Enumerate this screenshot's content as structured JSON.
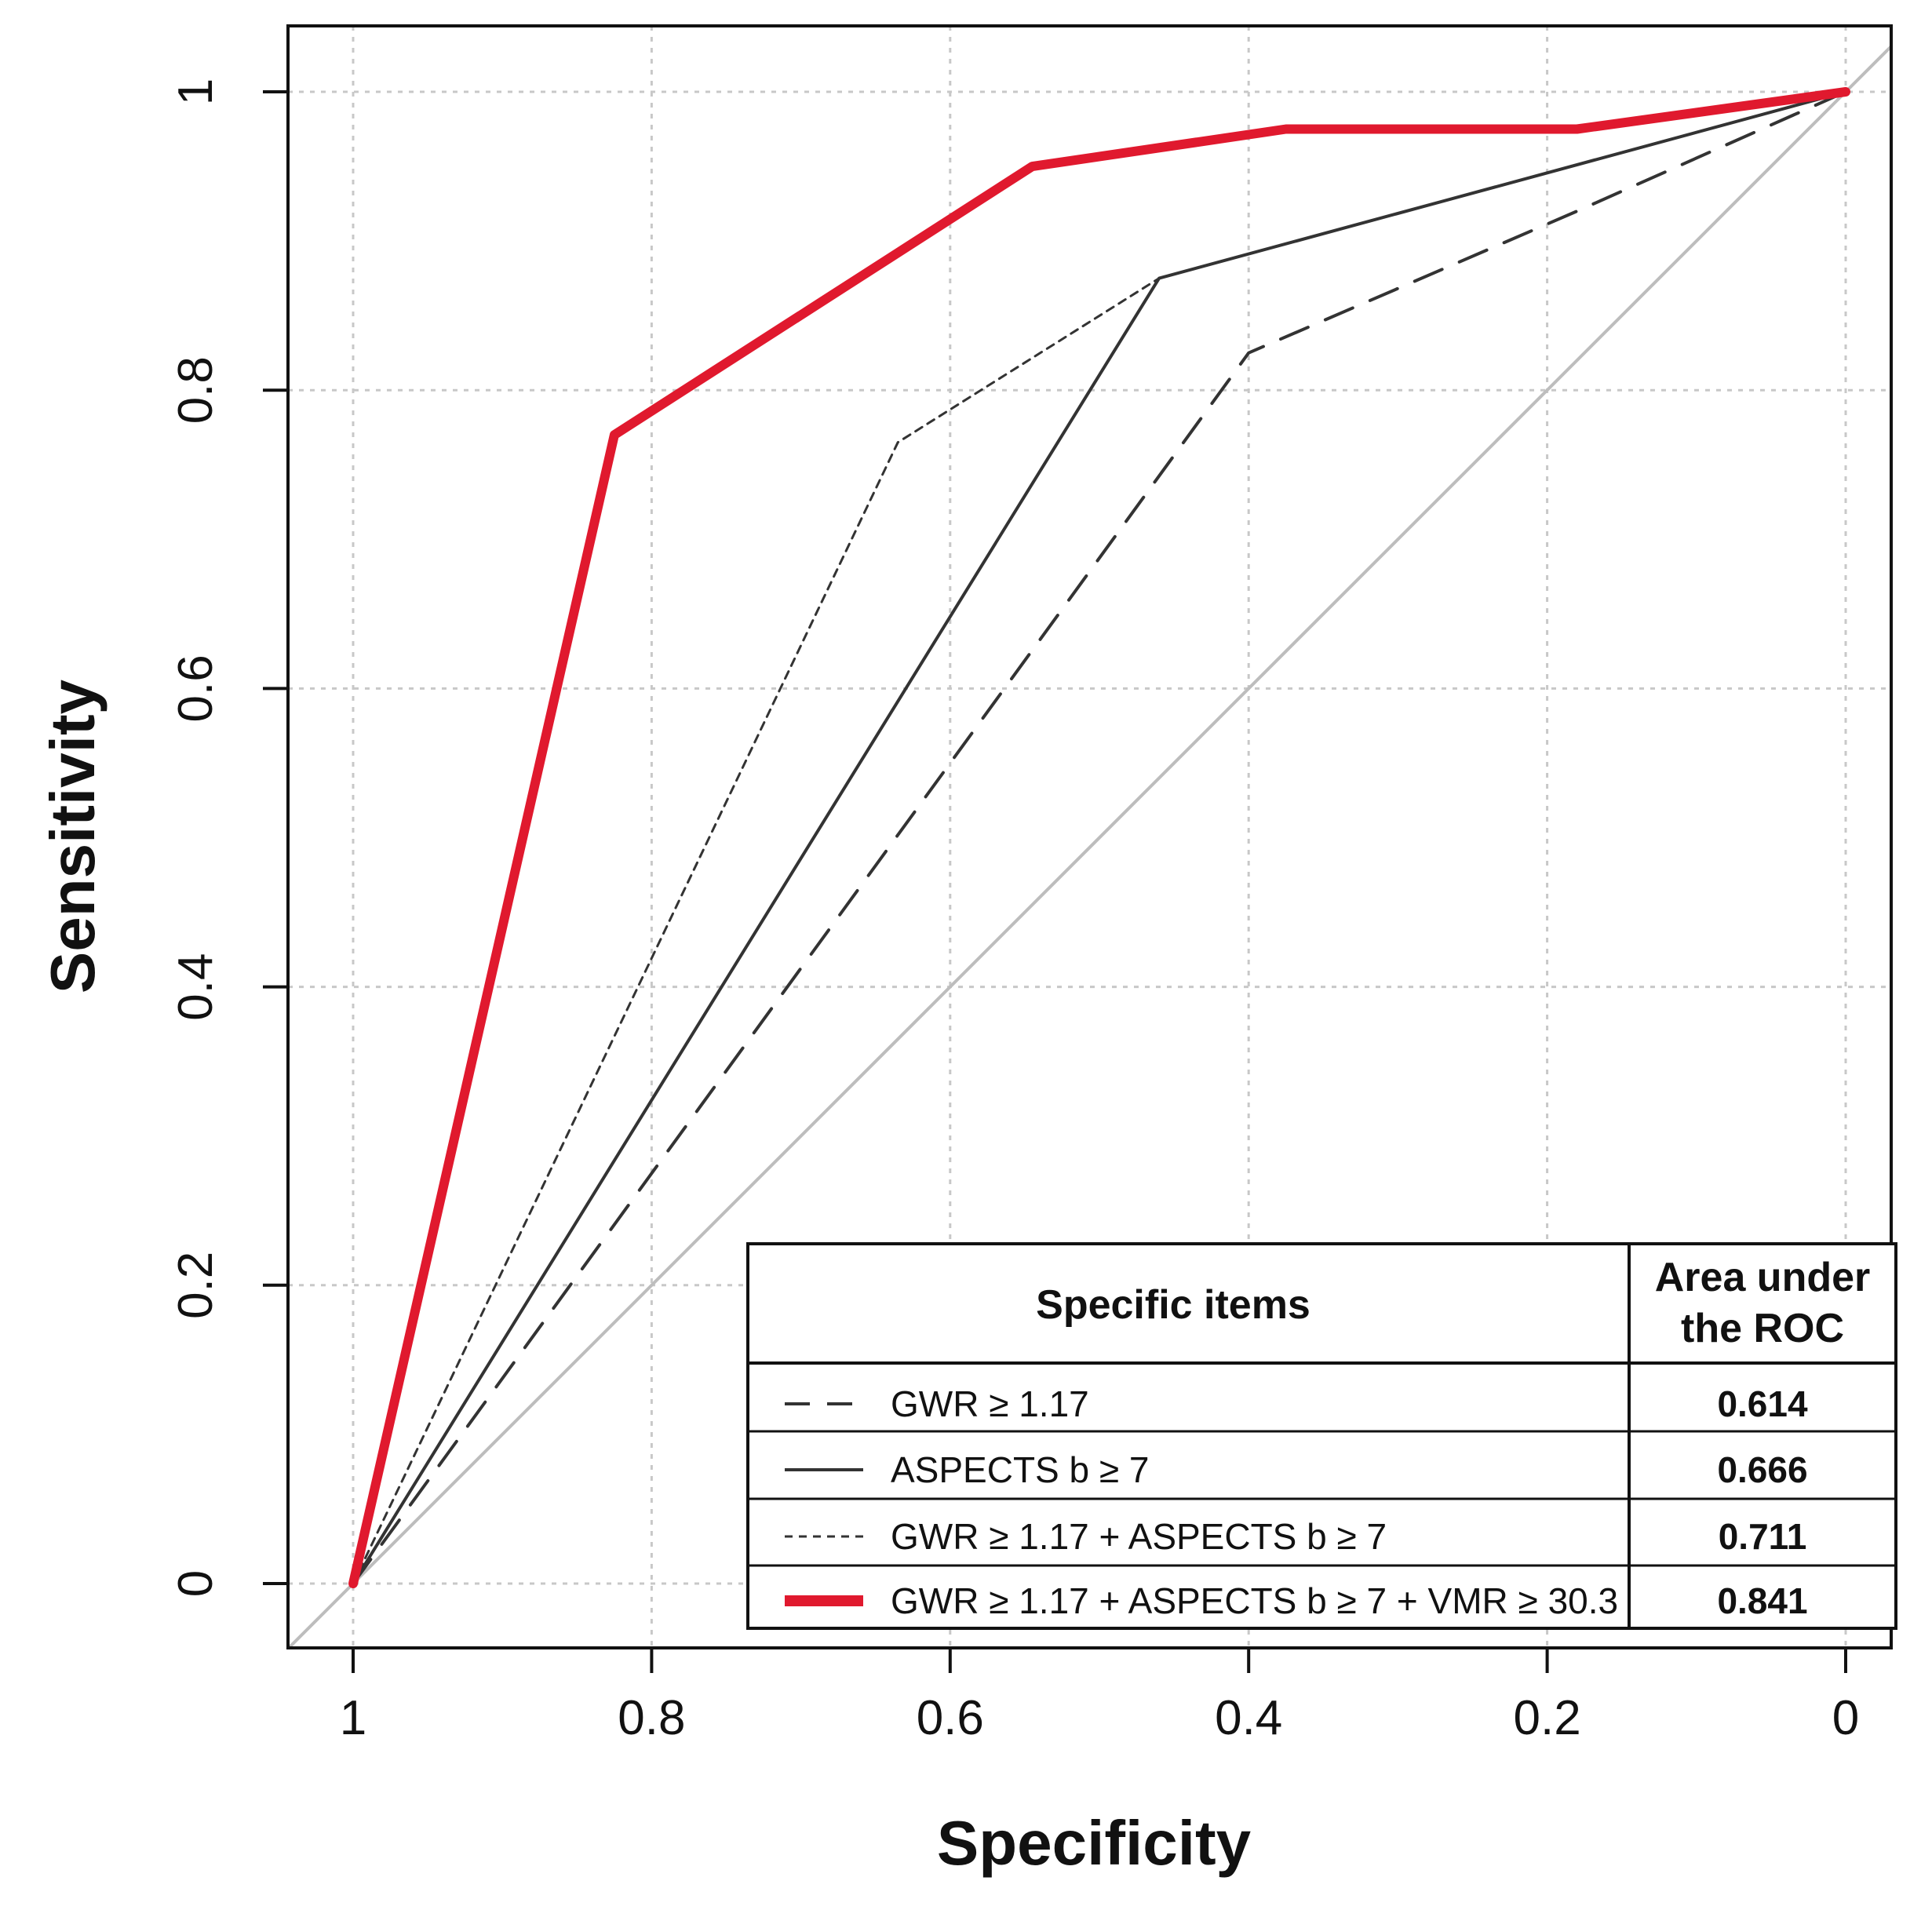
{
  "chart_data": {
    "type": "line",
    "title": "",
    "xlabel": "Specificity",
    "ylabel": "Sensitivity",
    "xlim": [
      1,
      0
    ],
    "ylim": [
      0,
      1
    ],
    "x_ticks": [
      1,
      0.8,
      0.6,
      0.4,
      0.2,
      0
    ],
    "x_tick_labels": [
      "1",
      "0.8",
      "0.6",
      "0.4",
      "0.2",
      "0"
    ],
    "y_ticks": [
      0,
      0.2,
      0.4,
      0.6,
      0.8,
      1
    ],
    "y_tick_labels": [
      "0",
      "0.2",
      "0.4",
      "0.6",
      "0.8",
      "1"
    ],
    "grid": true,
    "reference_line": {
      "from": [
        1,
        0
      ],
      "to": [
        0,
        1
      ],
      "color": "#bdbdbd"
    },
    "series": [
      {
        "name": "GWR ≥ 1.17",
        "style": "dashed",
        "color": "#333333",
        "specificity": [
          1,
          0.4,
          0.18,
          0
        ],
        "sensitivity": [
          0,
          0.825,
          0.92,
          1
        ]
      },
      {
        "name": "ASPECTS b ≥ 7",
        "style": "solid",
        "color": "#333333",
        "specificity": [
          1,
          0.46,
          0
        ],
        "sensitivity": [
          0,
          0.875,
          1
        ]
      },
      {
        "name": "GWR ≥ 1.17 + ASPECTS b ≥ 7",
        "style": "dotted",
        "color": "#333333",
        "specificity": [
          1,
          0.635,
          0.46,
          0
        ],
        "sensitivity": [
          0,
          0.765,
          0.875,
          1
        ]
      },
      {
        "name": "GWR ≥ 1.17 + ASPECTS b ≥ 7 + VMR ≥ 30.3",
        "style": "thick",
        "color": "#e0192e",
        "specificity": [
          1,
          0.825,
          0.545,
          0.375,
          0.18,
          0
        ],
        "sensitivity": [
          0,
          0.77,
          0.95,
          0.975,
          0.975,
          1
        ]
      }
    ],
    "legend": {
      "position": "bottom-right",
      "header_items": "Specific items",
      "header_auc_line1": "Area under",
      "header_auc_line2": "the ROC",
      "rows": [
        {
          "label": "GWR ≥ 1.17",
          "auc": "0.614"
        },
        {
          "label": "ASPECTS b ≥ 7",
          "auc": "0.666"
        },
        {
          "label": "GWR ≥ 1.17 + ASPECTS b ≥ 7",
          "auc": "0.711"
        },
        {
          "label": "GWR ≥ 1.17 + ASPECTS b ≥ 7 + VMR ≥ 30.3",
          "auc": "0.841"
        }
      ]
    }
  }
}
